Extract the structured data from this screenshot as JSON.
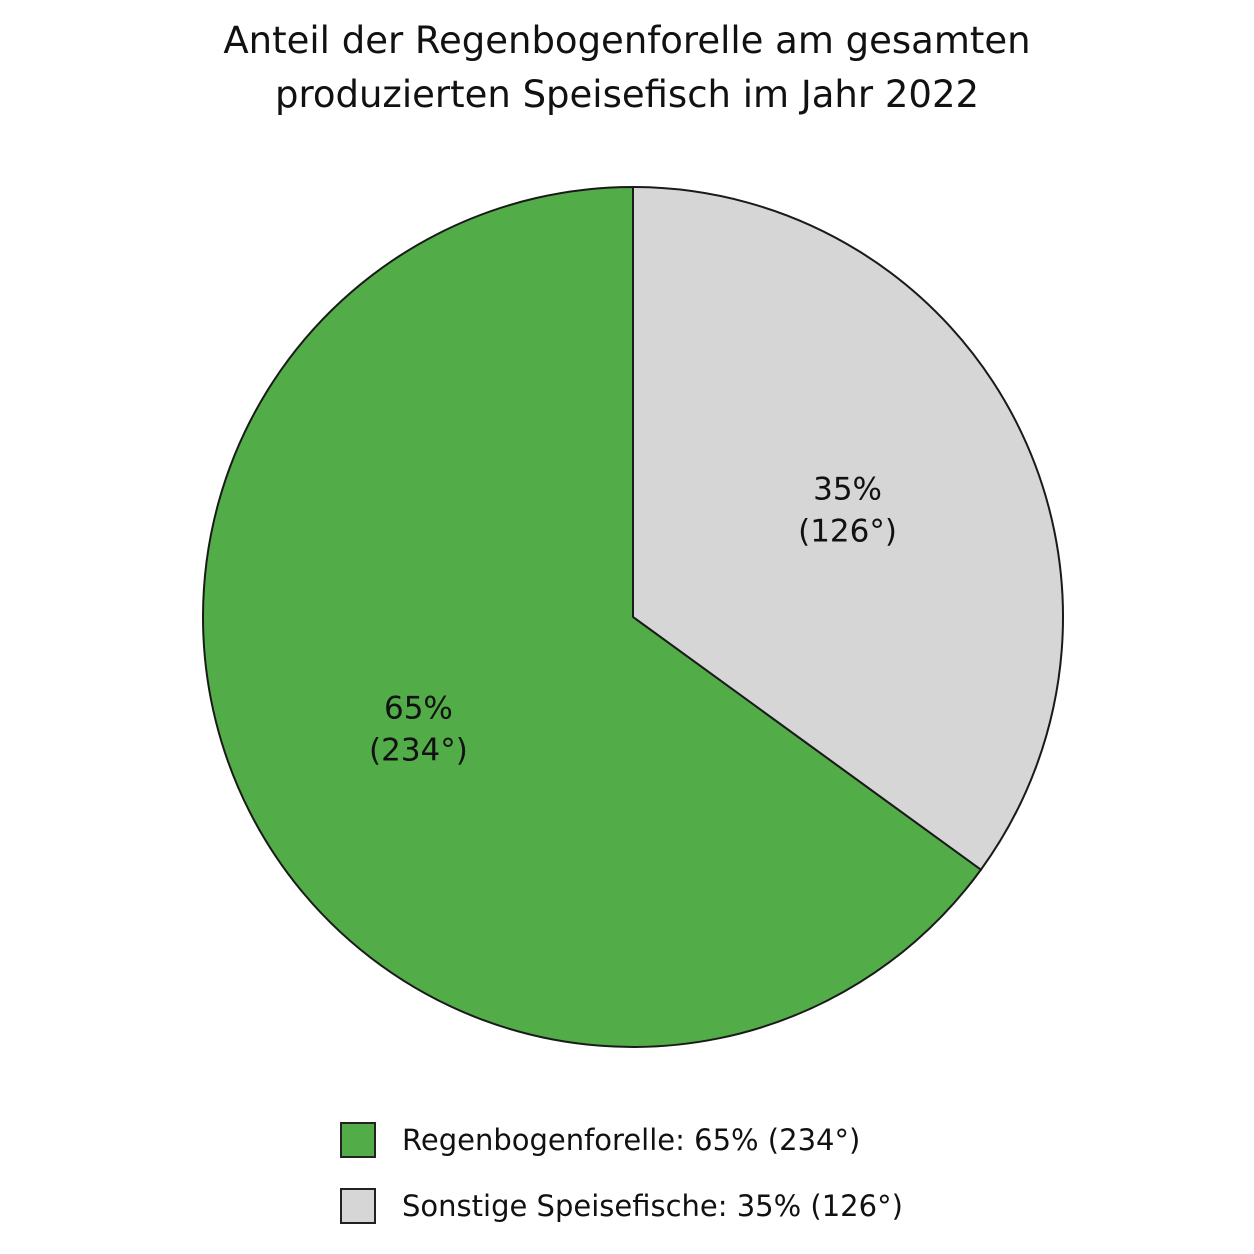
{
  "chart_data": {
    "type": "pie",
    "title_lines": [
      "Anteil der Regenbogenforelle am gesamten",
      "produzierten Speisefisch im Jahr 2022"
    ],
    "slices": [
      {
        "name": "Regenbogenforelle",
        "value": 65,
        "degrees": 234,
        "label_line1": "65%",
        "label_line2": "(234°)",
        "legend_label": "Regenbogenforelle: 65% (234°)",
        "color": "#52ad48"
      },
      {
        "name": "Sonstige Speisefische",
        "value": 35,
        "degrees": 126,
        "label_line1": "35%",
        "label_line2": "(126°)",
        "legend_label": "Sonstige Speisefische: 35% (126°)",
        "color": "#d6d6d6"
      }
    ],
    "start_direction": "top, clockwise",
    "legend_position": "bottom"
  }
}
